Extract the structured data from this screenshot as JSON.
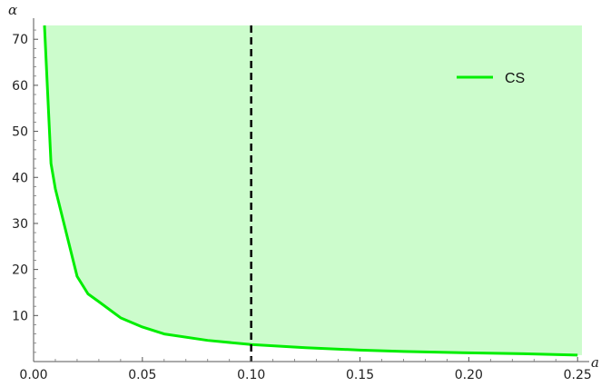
{
  "chart_data": {
    "type": "area",
    "xlabel": "a",
    "ylabel": "α",
    "xlim": [
      0,
      0.252
    ],
    "ylim": [
      0,
      73
    ],
    "x_ticks": [
      0.0,
      0.05,
      0.1,
      0.15,
      0.2,
      0.25
    ],
    "x_tick_labels": [
      "0.00",
      "0.05",
      "0.10",
      "0.15",
      "0.20",
      "0.25"
    ],
    "y_ticks": [
      10,
      20,
      30,
      40,
      50,
      60,
      70
    ],
    "y_tick_labels": [
      "10",
      "20",
      "30",
      "40",
      "50",
      "60",
      "70"
    ],
    "grid": false,
    "legend_position": "top-right",
    "series": [
      {
        "name": "CS",
        "color": "#00ee00",
        "fill_color": "#ccfccc",
        "fill": "above",
        "x": [
          0.005,
          0.008,
          0.01,
          0.015,
          0.02,
          0.025,
          0.03,
          0.04,
          0.05,
          0.06,
          0.08,
          0.1,
          0.125,
          0.15,
          0.17,
          0.2,
          0.225,
          0.25
        ],
        "y": [
          73,
          43,
          37.5,
          28,
          18.5,
          14.7,
          13,
          9.5,
          7.5,
          6,
          4.6,
          3.7,
          3,
          2.5,
          2.2,
          1.9,
          1.7,
          1.4
        ]
      }
    ],
    "reference_lines": [
      {
        "axis": "x",
        "value": 0.1,
        "style": "dashed",
        "color": "#000000"
      }
    ]
  }
}
